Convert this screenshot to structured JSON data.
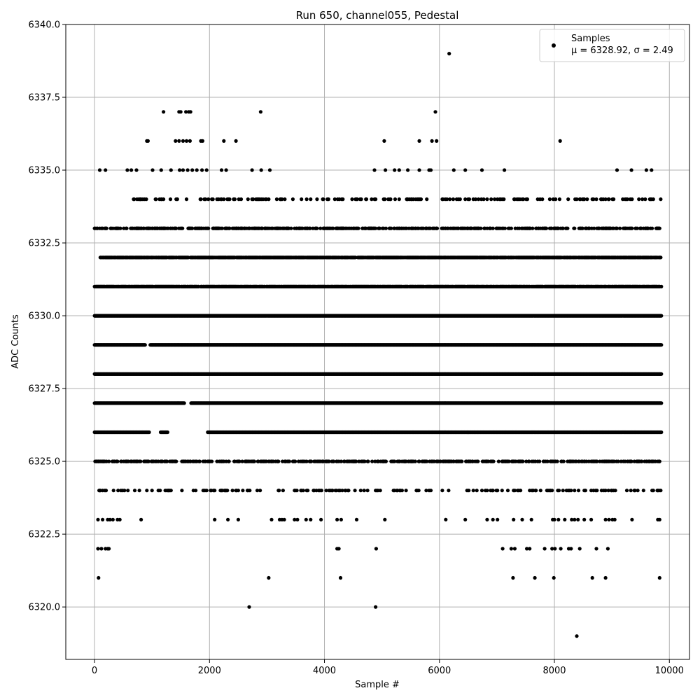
{
  "chart_data": {
    "type": "scatter",
    "title": "Run 650, channel055, Pedestal",
    "xlabel": "Sample #",
    "ylabel": "ADC Counts",
    "xlim": [
      -500,
      10350
    ],
    "ylim": [
      6318.2,
      6340
    ],
    "xticks": [
      0,
      2000,
      4000,
      6000,
      8000,
      10000
    ],
    "yticks": [
      6320.0,
      6322.5,
      6325.0,
      6327.5,
      6330.0,
      6332.5,
      6335.0,
      6337.5,
      6340.0
    ],
    "grid": true,
    "legend_position": "top-right",
    "marker_color": "#000000",
    "grid_color": "#b0b0b0",
    "series": [
      {
        "name": "Samples",
        "stats_label": "μ = 6328.92, σ = 2.49",
        "mean": 6328.92,
        "sigma": 2.49,
        "levels": [
          {
            "y": 6326,
            "segments": [
              [
                0,
                950
              ],
              [
                1150,
                1270
              ],
              [
                1970,
                6500
              ],
              [
                6500,
                9860
              ]
            ],
            "density": 1.0
          },
          {
            "y": 6327,
            "segments": [
              [
                0,
                1560
              ],
              [
                1680,
                9860
              ]
            ],
            "density": 1.0
          },
          {
            "y": 6328,
            "segments": [
              [
                0,
                9860
              ]
            ],
            "density": 1.0
          },
          {
            "y": 6329,
            "segments": [
              [
                0,
                880
              ],
              [
                970,
                9860
              ]
            ],
            "density": 1.0
          },
          {
            "y": 6330,
            "segments": [
              [
                0,
                9860
              ]
            ],
            "density": 1.0
          },
          {
            "y": 6331,
            "segments": [
              [
                0,
                9860
              ]
            ],
            "density": 0.85
          },
          {
            "y": 6332,
            "segments": [
              [
                100,
                9860
              ]
            ],
            "density": 0.85
          },
          {
            "y": 6325,
            "segments": [
              [
                0,
                9860
              ]
            ],
            "density": 0.45
          },
          {
            "y": 6333,
            "segments": [
              [
                0,
                9860
              ]
            ],
            "density": 0.45
          },
          {
            "y": 6324,
            "segments": [
              [
                0,
                9860
              ]
            ],
            "density": 0.18
          },
          {
            "y": 6334,
            "segments": [
              [
                680,
                9860
              ]
            ],
            "density": 0.2
          }
        ],
        "points": [
          [
            70,
            6321
          ],
          [
            3030,
            6321
          ],
          [
            4280,
            6321
          ],
          [
            7280,
            6321
          ],
          [
            7660,
            6321
          ],
          [
            7990,
            6321
          ],
          [
            8660,
            6321
          ],
          [
            8890,
            6321
          ],
          [
            9830,
            6321
          ],
          [
            2690,
            6320
          ],
          [
            4890,
            6320
          ],
          [
            8390,
            6319
          ],
          [
            6170,
            6339
          ],
          [
            1200,
            6337
          ],
          [
            1470,
            6337
          ],
          [
            1500,
            6337
          ],
          [
            1590,
            6337
          ],
          [
            1640,
            6337
          ],
          [
            1670,
            6337
          ],
          [
            2890,
            6337
          ],
          [
            5930,
            6337
          ],
          [
            910,
            6336
          ],
          [
            930,
            6336
          ],
          [
            1410,
            6336
          ],
          [
            1470,
            6336
          ],
          [
            1540,
            6336
          ],
          [
            1600,
            6336
          ],
          [
            1660,
            6336
          ],
          [
            1850,
            6336
          ],
          [
            1880,
            6336
          ],
          [
            2250,
            6336
          ],
          [
            2460,
            6336
          ],
          [
            5040,
            6336
          ],
          [
            5650,
            6336
          ],
          [
            5870,
            6336
          ],
          [
            5950,
            6336
          ],
          [
            8100,
            6336
          ],
          [
            90,
            6335
          ],
          [
            190,
            6335
          ],
          [
            570,
            6335
          ],
          [
            640,
            6335
          ],
          [
            730,
            6335
          ],
          [
            1010,
            6335
          ],
          [
            1160,
            6335
          ],
          [
            1330,
            6335
          ],
          [
            1480,
            6335
          ],
          [
            1540,
            6335
          ],
          [
            1620,
            6335
          ],
          [
            1700,
            6335
          ],
          [
            1780,
            6335
          ],
          [
            1870,
            6335
          ],
          [
            1950,
            6335
          ],
          [
            2210,
            6335
          ],
          [
            2290,
            6335
          ],
          [
            2740,
            6335
          ],
          [
            2900,
            6335
          ],
          [
            3050,
            6335
          ],
          [
            4870,
            6335
          ],
          [
            5060,
            6335
          ],
          [
            5220,
            6335
          ],
          [
            5300,
            6335
          ],
          [
            5450,
            6335
          ],
          [
            5650,
            6335
          ],
          [
            5820,
            6335
          ],
          [
            5850,
            6335
          ],
          [
            6250,
            6335
          ],
          [
            6450,
            6335
          ],
          [
            6740,
            6335
          ],
          [
            7130,
            6335
          ],
          [
            9090,
            6335
          ],
          [
            9340,
            6335
          ],
          [
            9600,
            6335
          ],
          [
            9690,
            6335
          ],
          [
            210,
            6333
          ],
          [
            9620,
            6333
          ],
          [
            2320,
            6323
          ],
          [
            3300,
            6323
          ],
          [
            4560,
            6323
          ],
          [
            5050,
            6323
          ],
          [
            6110,
            6323
          ],
          [
            6450,
            6323
          ],
          [
            6830,
            6323
          ],
          [
            7440,
            6323
          ],
          [
            7600,
            6323
          ],
          [
            8000,
            6323
          ],
          [
            8300,
            6323
          ],
          [
            8640,
            6323
          ],
          [
            9350,
            6323
          ],
          [
            9800,
            6323
          ],
          [
            9830,
            6323
          ],
          [
            60,
            6322
          ],
          [
            120,
            6322
          ],
          [
            190,
            6322
          ],
          [
            230,
            6322
          ],
          [
            250,
            6322
          ],
          [
            4220,
            6322
          ],
          [
            4250,
            6322
          ],
          [
            4900,
            6322
          ],
          [
            7100,
            6322
          ],
          [
            7250,
            6322
          ],
          [
            7310,
            6322
          ],
          [
            7520,
            6322
          ],
          [
            7570,
            6322
          ],
          [
            7830,
            6322
          ],
          [
            7960,
            6322
          ],
          [
            8010,
            6322
          ],
          [
            8110,
            6322
          ],
          [
            8250,
            6322
          ],
          [
            8290,
            6322
          ],
          [
            8440,
            6322
          ],
          [
            8730,
            6322
          ],
          [
            8930,
            6322
          ],
          [
            60,
            6323
          ],
          [
            140,
            6323
          ],
          [
            230,
            6323
          ],
          [
            270,
            6323
          ],
          [
            320,
            6323
          ],
          [
            400,
            6323
          ],
          [
            440,
            6323
          ],
          [
            810,
            6323
          ],
          [
            2090,
            6323
          ],
          [
            2500,
            6323
          ],
          [
            3080,
            6323
          ],
          [
            3220,
            6323
          ],
          [
            3260,
            6323
          ],
          [
            3480,
            6323
          ],
          [
            3530,
            6323
          ],
          [
            3680,
            6323
          ],
          [
            3760,
            6323
          ],
          [
            3940,
            6323
          ],
          [
            4220,
            6323
          ],
          [
            4290,
            6323
          ],
          [
            6930,
            6323
          ],
          [
            7010,
            6323
          ],
          [
            7290,
            6323
          ],
          [
            7970,
            6323
          ],
          [
            8070,
            6323
          ],
          [
            8180,
            6323
          ],
          [
            8350,
            6323
          ],
          [
            8410,
            6323
          ],
          [
            8520,
            6323
          ],
          [
            8890,
            6323
          ],
          [
            8950,
            6323
          ],
          [
            9010,
            6323
          ],
          [
            9050,
            6323
          ]
        ]
      }
    ]
  }
}
